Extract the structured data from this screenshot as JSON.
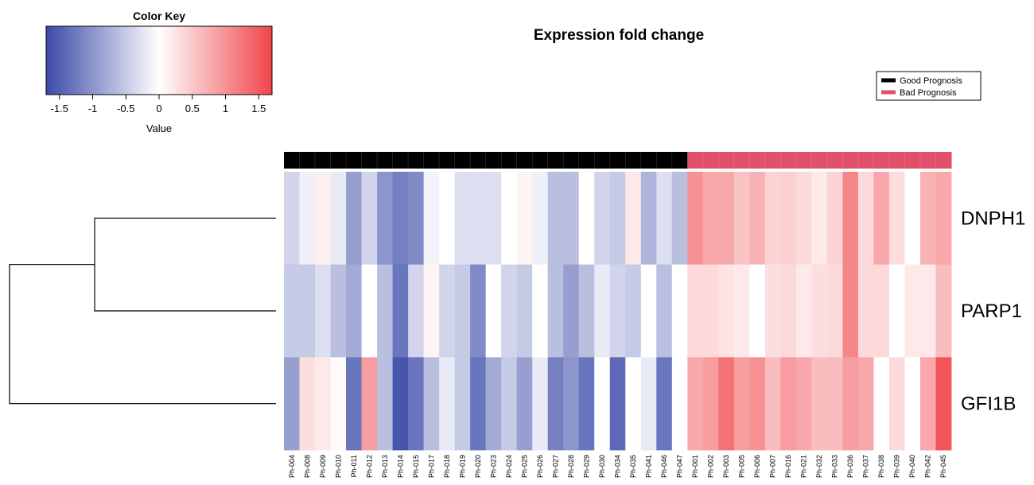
{
  "chart_data": {
    "type": "heatmap",
    "title": "Expression fold change",
    "color_key": {
      "title": "Color Key",
      "xlabel": "Value",
      "range": [
        -1.7,
        1.7
      ],
      "ticks": [
        -1.5,
        -1,
        -0.5,
        0,
        0.5,
        1,
        1.5
      ],
      "tick_labels": [
        "-1.5",
        "-1",
        "-0.5",
        "0",
        "0.5",
        "1",
        "1.5"
      ],
      "low_color": "#3b4aa8",
      "mid_color": "#ffffff",
      "high_color": "#f0454a"
    },
    "legend": {
      "placement": "top-right",
      "items": [
        {
          "label": "Good Prognosis",
          "color": "#000000"
        },
        {
          "label": "Bad Prognosis",
          "color": "#e0506a"
        }
      ]
    },
    "rows": [
      "DNPH1",
      "PARP1",
      "GFI1B"
    ],
    "columns": [
      "Ph-004",
      "Ph-008",
      "Ph-009",
      "Ph-010",
      "Ph-011",
      "Ph-012",
      "Ph-013",
      "Ph-014",
      "Ph-015",
      "Ph-017",
      "Ph-018",
      "Ph-019",
      "Ph-020",
      "Ph-023",
      "Ph-024",
      "Ph-025",
      "Ph-026",
      "Ph-027",
      "Ph-028",
      "Ph-029",
      "Ph-030",
      "Ph-034",
      "Ph-035",
      "Ph-041",
      "Ph-046",
      "Ph-047",
      "Ph-001",
      "Ph-002",
      "Ph-003",
      "Ph-005",
      "Ph-006",
      "Ph-007",
      "Ph-016",
      "Ph-021",
      "Ph-032",
      "Ph-033",
      "Ph-036",
      "Ph-037",
      "Ph-038",
      "Ph-039",
      "Ph-040",
      "Ph-042",
      "Ph-045"
    ],
    "column_groups": [
      "Good Prognosis",
      "Good Prognosis",
      "Good Prognosis",
      "Good Prognosis",
      "Good Prognosis",
      "Good Prognosis",
      "Good Prognosis",
      "Good Prognosis",
      "Good Prognosis",
      "Good Prognosis",
      "Good Prognosis",
      "Good Prognosis",
      "Good Prognosis",
      "Good Prognosis",
      "Good Prognosis",
      "Good Prognosis",
      "Good Prognosis",
      "Good Prognosis",
      "Good Prognosis",
      "Good Prognosis",
      "Good Prognosis",
      "Good Prognosis",
      "Good Prognosis",
      "Good Prognosis",
      "Good Prognosis",
      "Good Prognosis",
      "Bad Prognosis",
      "Bad Prognosis",
      "Bad Prognosis",
      "Bad Prognosis",
      "Bad Prognosis",
      "Bad Prognosis",
      "Bad Prognosis",
      "Bad Prognosis",
      "Bad Prognosis",
      "Bad Prognosis",
      "Bad Prognosis",
      "Bad Prognosis",
      "Bad Prognosis",
      "Bad Prognosis",
      "Bad Prognosis",
      "Bad Prognosis",
      "Bad Prognosis"
    ],
    "values": [
      [
        -0.4,
        -0.15,
        0.15,
        -0.2,
        -0.9,
        -0.4,
        -1.0,
        -1.2,
        -1.1,
        -0.1,
        0.0,
        -0.3,
        -0.3,
        -0.3,
        0.0,
        0.1,
        -0.15,
        -0.6,
        -0.6,
        0.0,
        -0.4,
        -0.5,
        0.2,
        -0.7,
        -0.3,
        -0.6,
        1.0,
        0.8,
        0.8,
        0.55,
        0.7,
        0.4,
        0.45,
        0.35,
        0.2,
        0.4,
        1.1,
        0.35,
        0.8,
        0.3,
        0.0,
        0.7,
        0.8
      ],
      [
        -0.5,
        -0.5,
        -0.3,
        -0.6,
        -0.8,
        0.0,
        -0.6,
        -1.3,
        -0.4,
        0.1,
        -0.4,
        -0.5,
        -1.1,
        0.0,
        -0.4,
        -0.5,
        0.0,
        -0.6,
        -0.9,
        -0.6,
        -0.2,
        -0.4,
        -0.5,
        0.0,
        -0.6,
        0.0,
        0.35,
        0.35,
        0.25,
        0.2,
        0.0,
        0.3,
        0.35,
        0.2,
        0.3,
        0.35,
        1.1,
        0.35,
        0.35,
        0.0,
        0.2,
        0.2,
        0.6
      ],
      [
        -0.9,
        0.3,
        0.2,
        0.05,
        -1.3,
        0.9,
        -0.6,
        -1.6,
        -1.3,
        -0.6,
        -0.2,
        -0.5,
        -1.3,
        -0.8,
        -0.5,
        -0.9,
        -0.2,
        -1.2,
        -1.0,
        -1.3,
        0.0,
        -1.4,
        0.0,
        -0.2,
        -1.3,
        0.0,
        0.8,
        0.9,
        1.3,
        0.9,
        1.0,
        0.6,
        0.9,
        0.8,
        0.6,
        0.6,
        0.9,
        0.8,
        0.0,
        0.35,
        0.0,
        0.8,
        1.55
      ]
    ],
    "row_dendrogram": "((DNPH1,PARP1),GFI1B)"
  }
}
